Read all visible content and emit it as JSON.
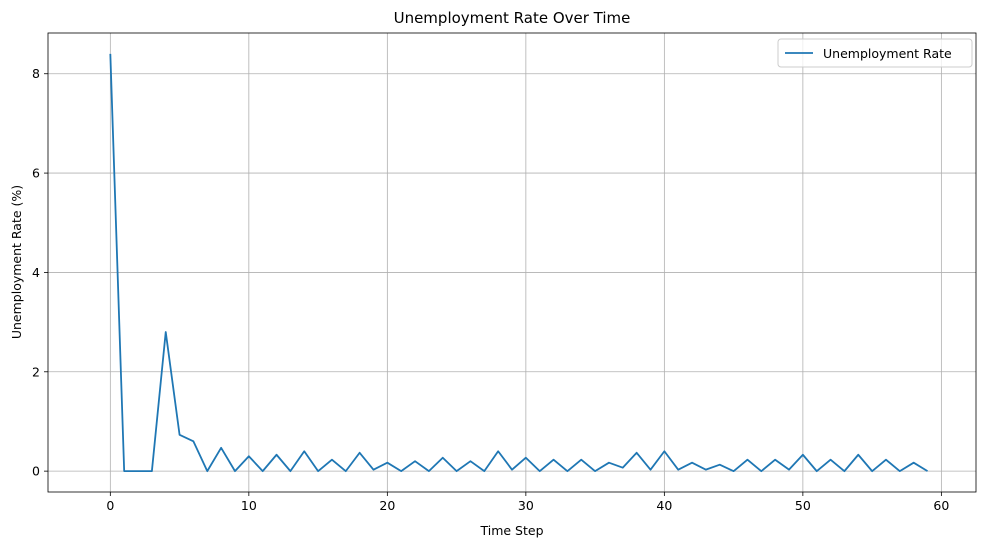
{
  "chart_data": {
    "type": "line",
    "title": "Unemployment Rate Over Time",
    "xlabel": "Time Step",
    "ylabel": "Unemployment Rate (%)",
    "xlim": [
      -4.5,
      62.5
    ],
    "ylim": [
      -0.42,
      8.82
    ],
    "xticks": [
      0,
      10,
      20,
      30,
      40,
      50,
      60
    ],
    "yticks": [
      0,
      2,
      4,
      6,
      8
    ],
    "grid": true,
    "legend_position": "top-right",
    "series": [
      {
        "name": "Unemployment Rate",
        "color": "#1f77b4",
        "x": [
          0,
          1,
          2,
          3,
          4,
          5,
          6,
          7,
          8,
          9,
          10,
          11,
          12,
          13,
          14,
          15,
          16,
          17,
          18,
          19,
          20,
          21,
          22,
          23,
          24,
          25,
          26,
          27,
          28,
          29,
          30,
          31,
          32,
          33,
          34,
          35,
          36,
          37,
          38,
          39,
          40,
          41,
          42,
          43,
          44,
          45,
          46,
          47,
          48,
          49,
          50,
          51,
          52,
          53,
          54,
          55,
          56,
          57,
          58,
          59
        ],
        "values": [
          8.4,
          0.0,
          0.0,
          0.0,
          2.8,
          0.73,
          0.6,
          0.0,
          0.47,
          0.0,
          0.3,
          0.0,
          0.33,
          0.0,
          0.4,
          0.0,
          0.23,
          0.0,
          0.37,
          0.03,
          0.17,
          0.0,
          0.2,
          0.0,
          0.27,
          0.0,
          0.2,
          0.0,
          0.4,
          0.03,
          0.27,
          0.0,
          0.23,
          0.0,
          0.23,
          0.0,
          0.17,
          0.07,
          0.37,
          0.03,
          0.4,
          0.03,
          0.17,
          0.03,
          0.13,
          0.0,
          0.23,
          0.0,
          0.23,
          0.03,
          0.33,
          0.0,
          0.23,
          0.0,
          0.33,
          0.0,
          0.23,
          0.0,
          0.17,
          0.0
        ]
      }
    ]
  }
}
